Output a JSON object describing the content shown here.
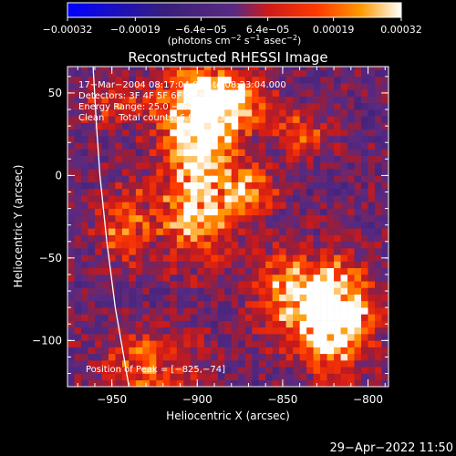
{
  "chart_data": {
    "type": "heatmap",
    "title": "Reconstructed RHESSI Image",
    "xlabel": "Heliocentric X (arcsec)",
    "ylabel": "Heliocentric Y (arcsec)",
    "xlim": [
      -976,
      -788
    ],
    "ylim": [
      -128,
      66
    ],
    "x_ticks": [
      -950,
      -900,
      -850,
      -800
    ],
    "x_tick_labels": [
      "−950",
      "−900",
      "−850",
      "−800"
    ],
    "y_ticks": [
      50,
      0,
      -50,
      -100
    ],
    "y_tick_labels": [
      "50",
      "0",
      "−50",
      "−100"
    ],
    "colorbar": {
      "range": [
        -0.00032,
        0.00032
      ],
      "tick_values": [
        -0.00032,
        -0.00019,
        -6.4e-05,
        6.4e-05,
        0.00019,
        0.00032
      ],
      "tick_labels": [
        "−0.00032",
        "−0.00019",
        "−6.4e−05",
        "6.4e−05",
        "0.00019",
        "0.00032"
      ],
      "unit_label_parts": [
        "(photons cm",
        "−2",
        " s",
        "−1",
        " asec",
        "−2",
        ")"
      ],
      "colors": [
        "#0000ff",
        "#3a1f7a",
        "#5a2a82",
        "#cc1a1a",
        "#ff3a00",
        "#ff9a00",
        "#ffffff"
      ]
    },
    "annotations": [
      "17−Mar−2004 08:17:04.000 to 08:23:04.000",
      "Detectors: 3F 4F 5F 6F 7F 8F, Att 0",
      "Energy Range: 25.0 − 50.0 keV",
      "Clean     Total counts: 6.96E+03",
      "Position of Peak = [−825,−74]"
    ],
    "peak": {
      "x": -825,
      "y": -74
    },
    "limb_curve": [
      {
        "x": -961,
        "y": 66
      },
      {
        "x": -959,
        "y": 30
      },
      {
        "x": -957,
        "y": 0
      },
      {
        "x": -953,
        "y": -40
      },
      {
        "x": -948,
        "y": -80
      },
      {
        "x": -943,
        "y": -110
      },
      {
        "x": -940,
        "y": -128
      }
    ],
    "blobs": [
      {
        "x": -900,
        "y": 30,
        "sx": 15,
        "sy": 25,
        "a": 0.8
      },
      {
        "x": -880,
        "y": 45,
        "sx": 15,
        "sy": 12,
        "a": 0.6
      },
      {
        "x": -900,
        "y": -25,
        "sx": 14,
        "sy": 20,
        "a": 0.55
      },
      {
        "x": -942,
        "y": -30,
        "sx": 12,
        "sy": 15,
        "a": 0.5
      },
      {
        "x": -820,
        "y": -85,
        "sx": 15,
        "sy": 22,
        "a": 1.0
      },
      {
        "x": -870,
        "y": -10,
        "sx": 12,
        "sy": 12,
        "a": 0.45
      },
      {
        "x": -850,
        "y": -70,
        "sx": 14,
        "sy": 18,
        "a": 0.45
      },
      {
        "x": -930,
        "y": -115,
        "sx": 20,
        "sy": 15,
        "a": 0.4
      },
      {
        "x": -840,
        "y": 25,
        "sx": 10,
        "sy": 10,
        "a": 0.45
      },
      {
        "x": -950,
        "y": 45,
        "sx": 15,
        "sy": 10,
        "a": 0.3
      }
    ]
  },
  "footer": {
    "date_stamp": "29−Apr−2022 11:50"
  }
}
